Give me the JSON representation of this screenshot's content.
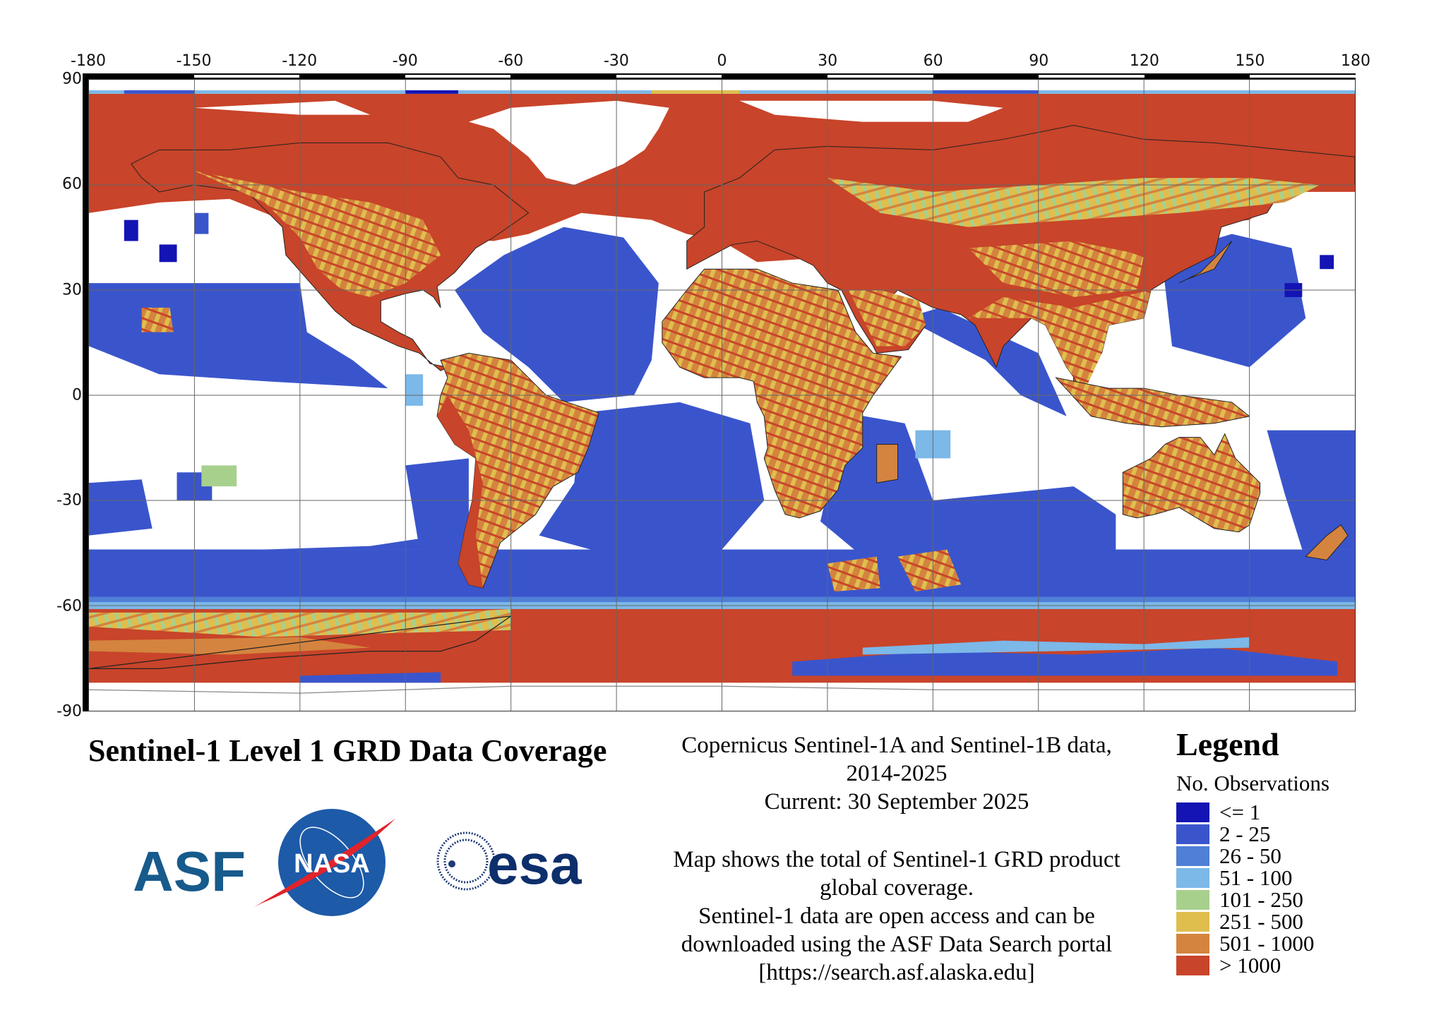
{
  "map": {
    "lon_ticks": [
      "-180",
      "-150",
      "-120",
      "-90",
      "-60",
      "-30",
      "0",
      "30",
      "60",
      "90",
      "120",
      "150",
      "180"
    ],
    "lat_ticks": [
      "90",
      "60",
      "30",
      "0",
      "-30",
      "-60",
      "-90"
    ]
  },
  "title": "Sentinel-1 Level 1 GRD Data Coverage",
  "description": {
    "lines": [
      "Copernicus Sentinel-1A and Sentinel-1B data,",
      "2014-2025",
      "Current: 30 September 2025",
      "Map shows the total of Sentinel-1 GRD product",
      "global coverage.",
      "Sentinel-1 data are open access and can be",
      "downloaded using the ASF Data Search portal",
      "[https://search.asf.alaska.edu]"
    ]
  },
  "legend": {
    "title": "Legend",
    "subtitle": "No. Observations",
    "items": [
      {
        "label": "<= 1",
        "color": "#1414b4"
      },
      {
        "label": "2 - 25",
        "color": "#3a55cc"
      },
      {
        "label": "26 - 50",
        "color": "#4f7fd6"
      },
      {
        "label": "51 - 100",
        "color": "#7cb8e8"
      },
      {
        "label": "101 - 250",
        "color": "#a8d08d"
      },
      {
        "label": "251 - 500",
        "color": "#dfbe4e"
      },
      {
        "label": "501 - 1000",
        "color": "#d4843e"
      },
      {
        "label": "> 1000",
        "color": "#c8442a"
      }
    ]
  },
  "logos": {
    "asf": "ASF",
    "nasa": "NASA",
    "esa": "esa"
  }
}
